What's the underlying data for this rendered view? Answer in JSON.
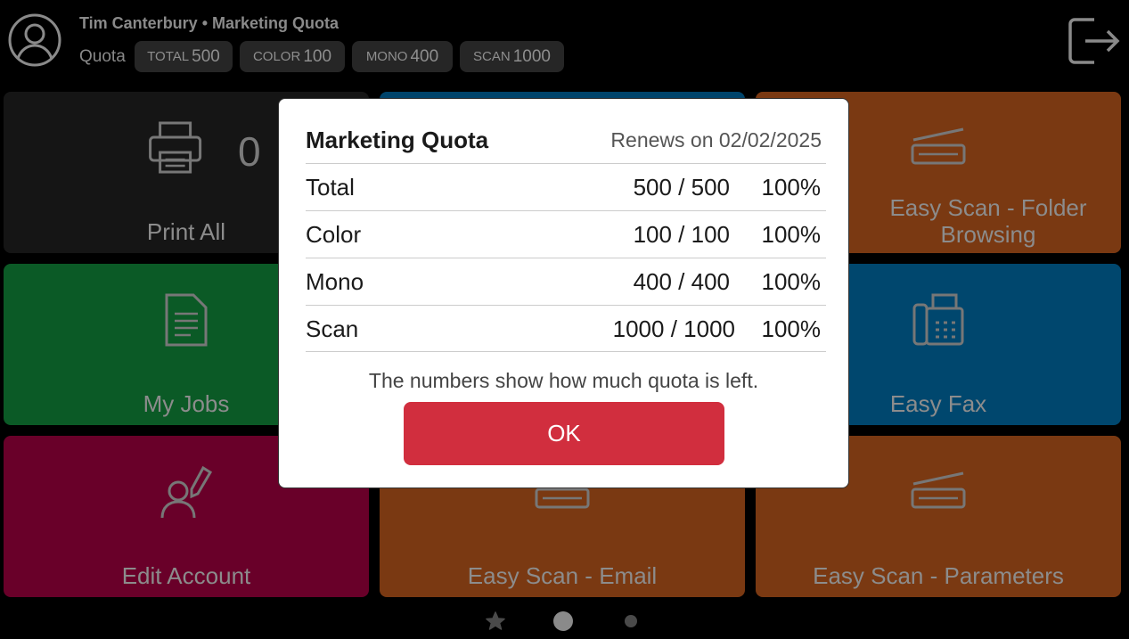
{
  "header": {
    "user_line": "Tim Canterbury • Marketing Quota",
    "quota_label": "Quota",
    "chips": [
      {
        "label": "TOTAL",
        "value": "500"
      },
      {
        "label": "COLOR",
        "value": "100"
      },
      {
        "label": "MONO",
        "value": "400"
      },
      {
        "label": "SCAN",
        "value": "1000"
      }
    ]
  },
  "tiles": [
    {
      "label": "Print All",
      "count": "0",
      "color": "#151515"
    },
    {
      "label": "",
      "color": "#00446b"
    },
    {
      "label": "Easy Scan - Folder Browsing",
      "color": "#7a3912"
    },
    {
      "label": "My Jobs",
      "color": "#0b5a26"
    },
    {
      "label": "",
      "color": "#00476e"
    },
    {
      "label": "Easy Fax",
      "color": "#00476e"
    },
    {
      "label": "Edit Account",
      "color": "#690029"
    },
    {
      "label": "Easy Scan - Email",
      "color": "#7a3912"
    },
    {
      "label": "Easy Scan - Parameters",
      "color": "#7a3912"
    }
  ],
  "modal": {
    "title": "Marketing Quota",
    "renews": "Renews on 02/02/2025",
    "rows": [
      {
        "name": "Total",
        "value": "500 / 500",
        "pct": "100%"
      },
      {
        "name": "Color",
        "value": "100 / 100",
        "pct": "100%"
      },
      {
        "name": "Mono",
        "value": "400 / 400",
        "pct": "100%"
      },
      {
        "name": "Scan",
        "value": "1000 / 1000",
        "pct": "100%"
      }
    ],
    "note": "The numbers show how much quota is left.",
    "ok_label": "OK"
  },
  "pager": {
    "pages": [
      "favorites",
      "page-1",
      "page-2"
    ],
    "active": 1
  }
}
